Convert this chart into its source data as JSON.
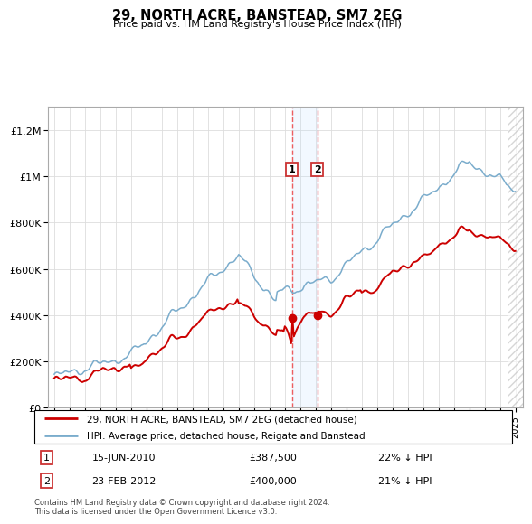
{
  "title": "29, NORTH ACRE, BANSTEAD, SM7 2EG",
  "subtitle": "Price paid vs. HM Land Registry's House Price Index (HPI)",
  "ylabel_ticks": [
    "£0",
    "£200K",
    "£400K",
    "£600K",
    "£800K",
    "£1M",
    "£1.2M"
  ],
  "ylim": [
    0,
    1300000
  ],
  "yticks": [
    0,
    200000,
    400000,
    600000,
    800000,
    1000000,
    1200000
  ],
  "xstart_year": 1995,
  "xend_year": 2025,
  "transaction1_year": 2010.46,
  "transaction1_price": 387500,
  "transaction1_date": "15-JUN-2010",
  "transaction1_hpi_text": "22% ↓ HPI",
  "transaction1_price_text": "£387,500",
  "transaction2_year": 2012.12,
  "transaction2_price": 400000,
  "transaction2_date": "23-FEB-2012",
  "transaction2_hpi_text": "21% ↓ HPI",
  "transaction2_price_text": "£400,000",
  "legend_label_red": "29, NORTH ACRE, BANSTEAD, SM7 2EG (detached house)",
  "legend_label_blue": "HPI: Average price, detached house, Reigate and Banstead",
  "footer": "Contains HM Land Registry data © Crown copyright and database right 2024.\nThis data is licensed under the Open Government Licence v3.0.",
  "red_color": "#cc0000",
  "blue_color": "#7aaccc",
  "dashed_line_color": "#ee4444",
  "highlight_fill": "#ddeeff"
}
